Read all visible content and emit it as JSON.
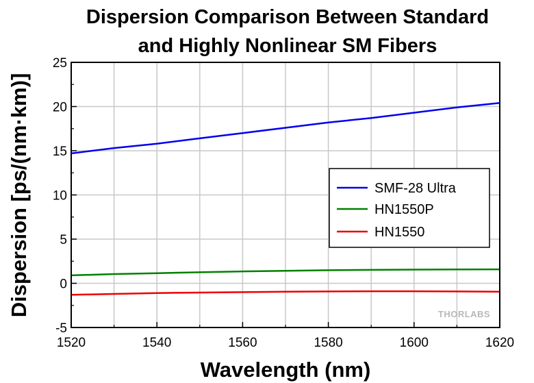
{
  "chart_data": {
    "type": "line",
    "title_lines": [
      "Dispersion Comparison Between Standard",
      "and Highly Nonlinear SM Fibers"
    ],
    "xlabel": "Wavelength (nm)",
    "ylabel": "Dispersion [ps/(nm·km)]",
    "xlim": [
      1520,
      1620
    ],
    "ylim": [
      -5,
      25
    ],
    "xticks": [
      1520,
      1540,
      1560,
      1580,
      1600,
      1620
    ],
    "yticks": [
      -5,
      0,
      5,
      10,
      15,
      20,
      25
    ],
    "grid": true,
    "legend_position": "middle-right",
    "series": [
      {
        "name": "SMF-28 Ultra",
        "color": "#0000ee",
        "x": [
          1520,
          1530,
          1540,
          1550,
          1560,
          1570,
          1580,
          1590,
          1600,
          1610,
          1620
        ],
        "y": [
          14.7,
          15.3,
          15.8,
          16.4,
          17.0,
          17.6,
          18.2,
          18.7,
          19.3,
          19.9,
          20.4
        ]
      },
      {
        "name": "HN1550P",
        "color": "#008000",
        "x": [
          1520,
          1530,
          1540,
          1550,
          1560,
          1570,
          1580,
          1590,
          1600,
          1610,
          1620
        ],
        "y": [
          0.9,
          1.05,
          1.15,
          1.25,
          1.35,
          1.42,
          1.48,
          1.52,
          1.55,
          1.57,
          1.58
        ]
      },
      {
        "name": "HN1550",
        "color": "#ee0000",
        "x": [
          1520,
          1530,
          1540,
          1550,
          1560,
          1570,
          1580,
          1590,
          1600,
          1610,
          1620
        ],
        "y": [
          -1.3,
          -1.2,
          -1.1,
          -1.05,
          -1.0,
          -0.95,
          -0.92,
          -0.9,
          -0.9,
          -0.92,
          -0.95
        ]
      }
    ],
    "watermark": "THORLABS"
  }
}
